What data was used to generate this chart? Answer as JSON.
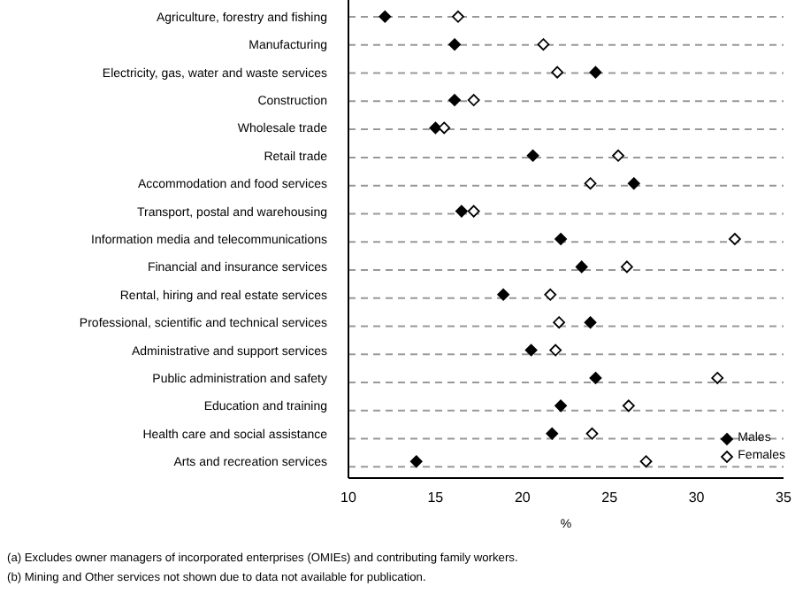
{
  "chart_data": {
    "type": "scatter",
    "categories": [
      "Agriculture, forestry and fishing",
      "Manufacturing",
      "Electricity, gas, water and waste services",
      "Construction",
      "Wholesale trade",
      "Retail trade",
      "Accommodation and food services",
      "Transport, postal and warehousing",
      "Information media and telecommunications",
      "Financial and insurance services",
      "Rental, hiring and real estate services",
      "Professional, scientific and technical services",
      "Administrative and support services",
      "Public administration and safety",
      "Education and training",
      "Health care and social assistance",
      "Arts and recreation services"
    ],
    "series": [
      {
        "name": "Males",
        "color": "#000000",
        "values": [
          12.1,
          16.1,
          24.2,
          16.1,
          15.0,
          20.6,
          26.4,
          16.5,
          22.2,
          23.4,
          18.9,
          23.9,
          20.5,
          24.2,
          22.2,
          21.7,
          13.9
        ]
      },
      {
        "name": "Females",
        "color": "#ffffff",
        "values": [
          16.3,
          21.2,
          22.0,
          17.2,
          15.5,
          25.5,
          23.9,
          17.2,
          32.2,
          26.0,
          21.6,
          22.1,
          21.9,
          31.2,
          26.1,
          24.0,
          27.1
        ]
      }
    ],
    "orientation": "horizontal",
    "xlabel": "%",
    "xlim": [
      10,
      35
    ],
    "xticks": [
      10,
      15,
      20,
      25,
      30,
      35
    ],
    "grid": "y",
    "legend": "bottom right",
    "marker": "diamond",
    "annotations": [
      "(a) Excludes owner managers of incorporated enterprises (OMIEs) and contributing family workers.",
      "(b) Mining and Other services not shown due to data not available for publication."
    ]
  }
}
